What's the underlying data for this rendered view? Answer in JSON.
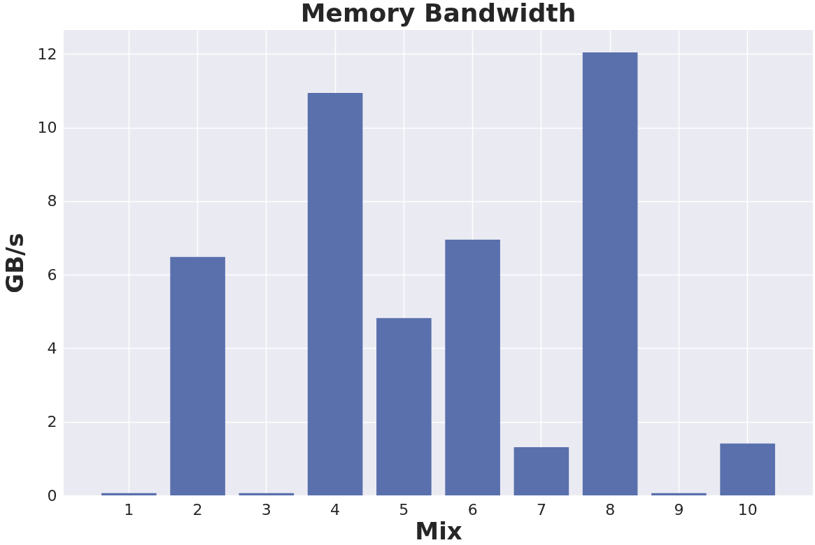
{
  "chart_data": {
    "type": "bar",
    "title": "Memory Bandwidth",
    "xlabel": "Mix",
    "ylabel": "GB/s",
    "categories": [
      "1",
      "2",
      "3",
      "4",
      "5",
      "6",
      "7",
      "8",
      "9",
      "10"
    ],
    "values": [
      0.06,
      6.48,
      0.06,
      10.94,
      4.82,
      6.95,
      1.31,
      12.04,
      0.06,
      1.41
    ],
    "color": "#5a70ad",
    "ylim": [
      0,
      12.65
    ],
    "yticks": [
      0,
      2,
      4,
      6,
      8,
      10,
      12
    ],
    "grid": true
  }
}
